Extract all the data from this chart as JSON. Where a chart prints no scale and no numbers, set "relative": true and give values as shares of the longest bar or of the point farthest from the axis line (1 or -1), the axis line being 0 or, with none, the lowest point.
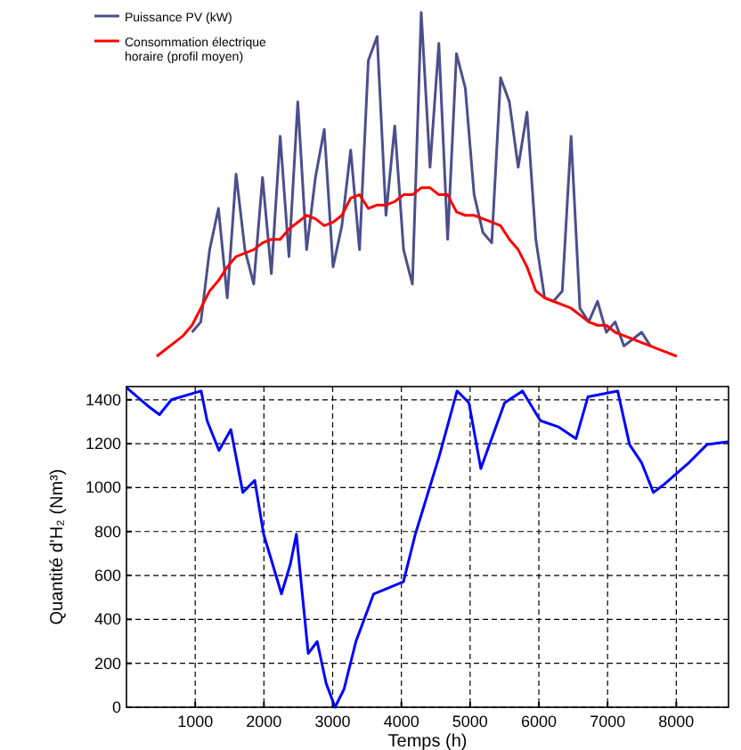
{
  "chart_data": [
    {
      "type": "line",
      "relative": true,
      "legend": "top left",
      "categories": [
        null,
        null,
        null,
        null,
        null,
        null,
        null,
        null,
        null,
        null,
        null,
        null,
        null,
        null,
        null,
        null,
        null,
        null,
        null,
        null,
        null,
        null,
        null,
        null,
        null,
        null,
        null,
        null,
        null,
        null,
        null,
        null,
        null,
        null,
        null,
        null,
        null,
        null,
        null,
        null,
        null,
        null,
        null,
        null,
        null,
        null,
        null,
        null,
        null,
        null,
        null,
        null,
        null,
        null,
        null,
        null,
        null,
        null,
        null,
        null
      ],
      "series": [
        {
          "name": "Puissance PV (kW)",
          "color": "#4b4f8a",
          "values": [
            null,
            null,
            null,
            null,
            0.07,
            0.1,
            0.31,
            0.43,
            0.17,
            0.53,
            0.31,
            0.21,
            0.52,
            0.24,
            0.64,
            0.29,
            0.74,
            0.31,
            0.52,
            0.66,
            0.26,
            0.38,
            0.6,
            0.31,
            0.86,
            0.93,
            0.41,
            0.67,
            0.31,
            0.21,
            1,
            0.55,
            0.91,
            0.34,
            0.88,
            0.78,
            0.47,
            0.36,
            0.33,
            0.81,
            0.74,
            0.55,
            0.71,
            0.34,
            0.17,
            0.16,
            0.19,
            0.64,
            0.14,
            0.1,
            0.16,
            0.07,
            0.1,
            0.03,
            0.05,
            0.07,
            0.03,
            null,
            null,
            null
          ]
        },
        {
          "name": "Consommation électrique horaire (profil moyen)",
          "color": "#ff0000",
          "values": [
            0,
            0.02,
            0.04,
            0.06,
            0.09,
            0.14,
            0.19,
            0.22,
            0.26,
            0.29,
            0.3,
            0.31,
            0.33,
            0.34,
            0.34,
            0.37,
            0.39,
            0.41,
            0.4,
            0.38,
            0.39,
            0.41,
            0.46,
            0.47,
            0.43,
            0.44,
            0.44,
            0.45,
            0.47,
            0.47,
            0.49,
            0.49,
            0.47,
            0.47,
            0.42,
            0.41,
            0.41,
            0.4,
            0.39,
            0.38,
            0.34,
            0.31,
            0.26,
            0.19,
            0.17,
            0.16,
            0.15,
            0.14,
            0.12,
            0.1,
            0.09,
            0.09,
            0.07,
            0.06,
            0.05,
            0.04,
            0.03,
            0.02,
            0.01,
            0
          ]
        }
      ]
    },
    {
      "type": "line",
      "xlabel": "Temps (h)",
      "ylabel": "Quantité d'H₂ (Nm³)",
      "grid": true,
      "xlim": [
        0,
        8760
      ],
      "xticks": [
        1000,
        2000,
        3000,
        4000,
        5000,
        6000,
        7000,
        8000
      ],
      "ylim": [
        0,
        1460
      ],
      "yticks": [
        0,
        200,
        400,
        600,
        800,
        1000,
        1200,
        1400
      ],
      "series": [
        {
          "color": "#0000ff",
          "x": [
            4,
            307,
            480,
            654,
            1087,
            1173,
            1346,
            1519,
            1693,
            1866,
            1996,
            2126,
            2255,
            2385,
            2472,
            2558,
            2645,
            2775,
            2905,
            3035,
            3165,
            3338,
            3597,
            4030,
            4203,
            4550,
            4810,
            4983,
            5156,
            5502,
            5762,
            6022,
            6281,
            6541,
            6714,
            7147,
            7320,
            7494,
            7667,
            7840,
            8186,
            8446,
            8749
          ],
          "values": [
            1454,
            1373,
            1332,
            1400,
            1440,
            1305,
            1169,
            1264,
            978,
            1033,
            788,
            652,
            516,
            652,
            788,
            516,
            245,
            299,
            109,
            0,
            82,
            299,
            516,
            571,
            788,
            1142,
            1440,
            1386,
            1087,
            1386,
            1440,
            1305,
            1277,
            1223,
            1413,
            1440,
            1196,
            1114,
            978,
            1019,
            1114,
            1196,
            1209
          ]
        }
      ]
    }
  ]
}
